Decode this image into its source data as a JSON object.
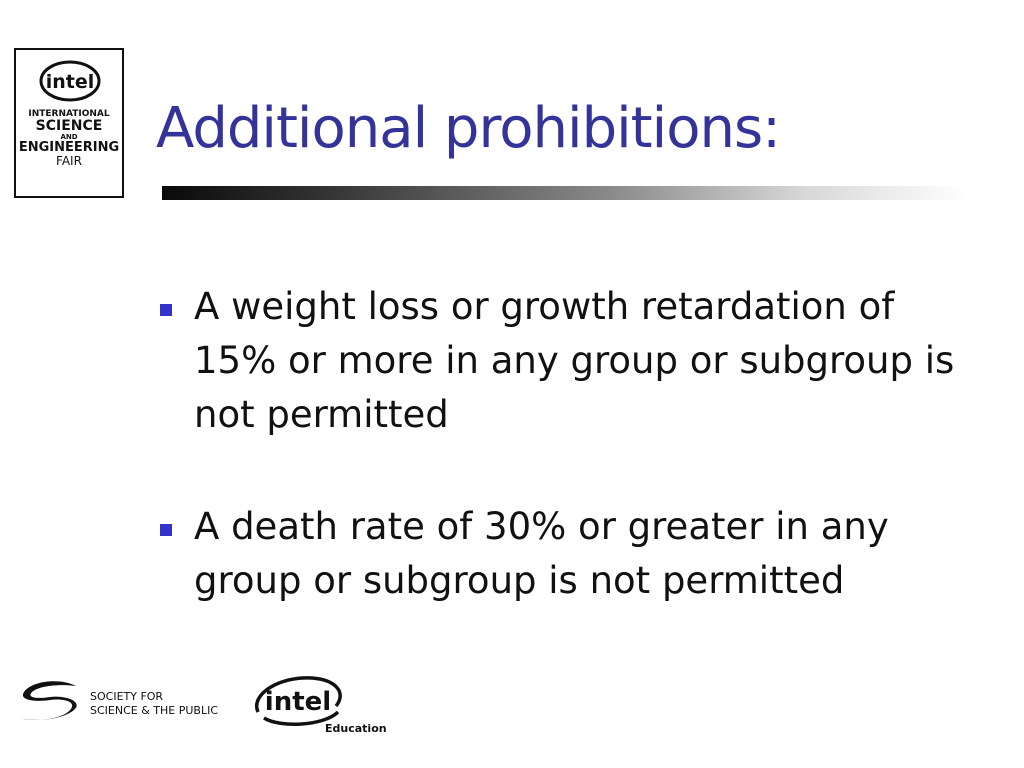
{
  "logo": {
    "intel_mark": "intel",
    "lines": [
      "INTERNATIONAL",
      "SCIENCE",
      "AND",
      "ENGINEERING",
      "FAIR"
    ]
  },
  "slide": {
    "title": "Additional prohibitions:",
    "bullets": [
      {
        "text": "A weight loss or growth retardation of 15% or more in any group or subgroup is not permitted"
      },
      {
        "text": "A death rate of 30% or greater in any group or subgroup is not permitted"
      }
    ]
  },
  "footer": {
    "society_line1": "SOCIETY FOR",
    "society_line2": "SCIENCE & THE PUBLIC",
    "intel_mark": "intel",
    "education": "Education"
  },
  "colors": {
    "title": "#333399",
    "bullet_marker": "#3333cc",
    "text": "#111111"
  }
}
